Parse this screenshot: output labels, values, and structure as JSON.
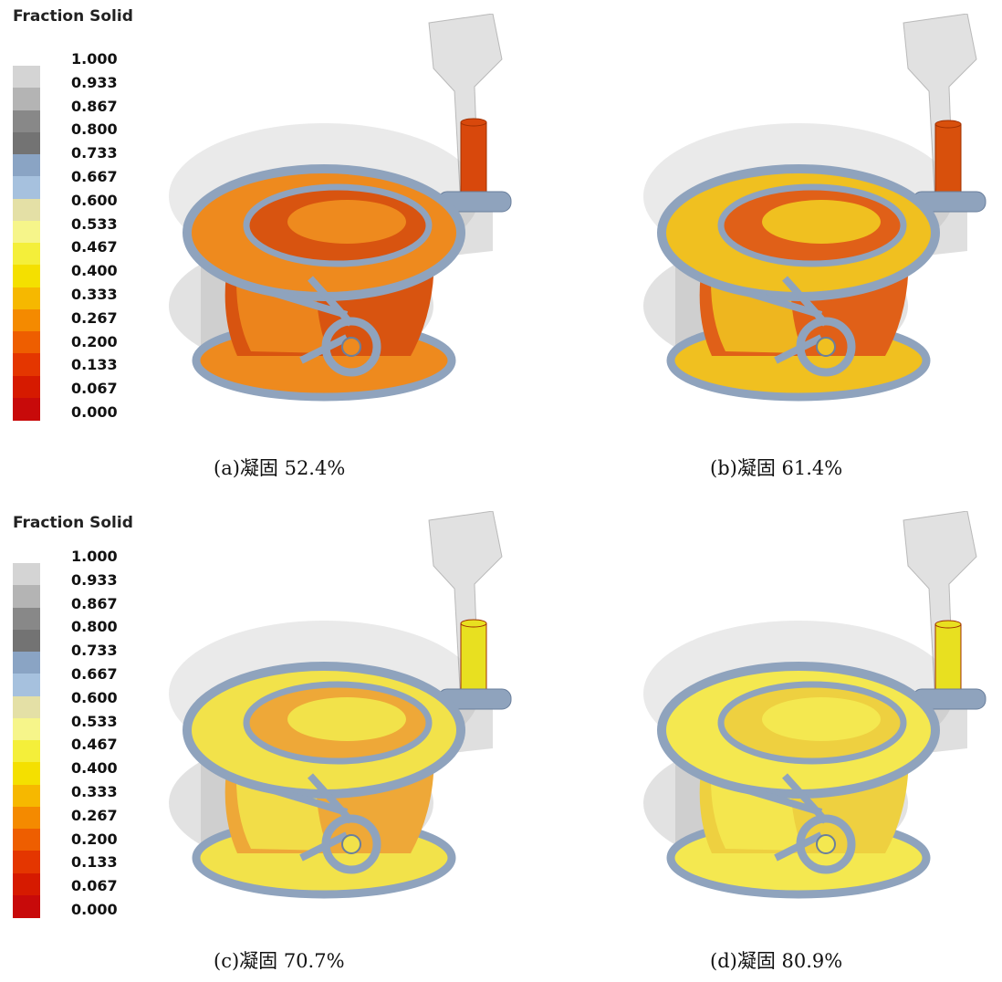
{
  "legend": {
    "title": "Fraction Solid",
    "ticks": [
      "1.000",
      "0.933",
      "0.867",
      "0.800",
      "0.733",
      "0.667",
      "0.600",
      "0.533",
      "0.467",
      "0.400",
      "0.333",
      "0.267",
      "0.200",
      "0.133",
      "0.067",
      "0.000"
    ],
    "colors": [
      "#d4d4d4",
      "#b4b4b4",
      "#888888",
      "#737373",
      "#8aa4c4",
      "#a6c1de",
      "#e4e0a6",
      "#f6f58a",
      "#f4ef3a",
      "#f4e000",
      "#f6b800",
      "#f48a00",
      "#ee5e00",
      "#e43600",
      "#d61a00",
      "#c80a0a"
    ]
  },
  "panels": [
    {
      "id": "a",
      "caption": "(a)凝固 52.4%",
      "show_legend": true,
      "body_color": "#ee8a1e",
      "inner_color": "#d85410",
      "riser_color": "#d8480c",
      "riser_level": 0.55
    },
    {
      "id": "b",
      "caption": "(b)凝固 61.4%",
      "show_legend": false,
      "body_color": "#f0c020",
      "inner_color": "#e06018",
      "riser_color": "#d8500c",
      "riser_level": 0.45
    },
    {
      "id": "c",
      "caption": "(c)凝固 70.7%",
      "show_legend": true,
      "body_color": "#f2e24a",
      "inner_color": "#eea838",
      "riser_color": "#e8e020",
      "riser_level": 0.35
    },
    {
      "id": "d",
      "caption": "(d)凝固 80.9%",
      "show_legend": false,
      "body_color": "#f4e850",
      "inner_color": "#eed040",
      "riser_color": "#e8e020",
      "riser_level": 0.3
    }
  ]
}
